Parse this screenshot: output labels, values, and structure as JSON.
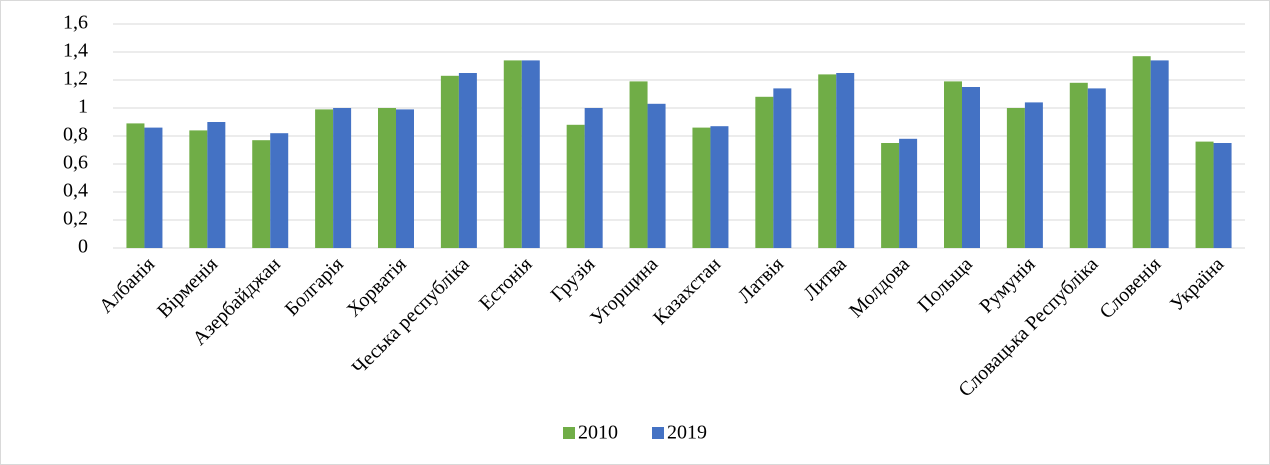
{
  "chart_data": {
    "type": "bar",
    "categories": [
      "Албанія",
      "Вірменія",
      "Азербайджан",
      "Болгарія",
      "Хорватія",
      "Чеська республіка",
      "Естонія",
      "Грузія",
      "Угорщина",
      "Казахстан",
      "Латвія",
      "Литва",
      "Молдова",
      "Польща",
      "Румунія",
      "Словацька Республіка",
      "Словенія",
      "Україна"
    ],
    "series": [
      {
        "name": "2010",
        "color": "#70ad47",
        "values": [
          0.89,
          0.84,
          0.77,
          0.99,
          1.0,
          1.23,
          1.34,
          0.88,
          1.19,
          0.86,
          1.08,
          1.24,
          0.75,
          1.19,
          1.0,
          1.18,
          1.37,
          0.76
        ]
      },
      {
        "name": "2019",
        "color": "#4472c4",
        "values": [
          0.86,
          0.9,
          0.82,
          1.0,
          0.99,
          1.25,
          1.34,
          1.0,
          1.03,
          0.87,
          1.14,
          1.25,
          0.78,
          1.15,
          1.04,
          1.14,
          1.34,
          0.75
        ]
      }
    ],
    "ylim": [
      0,
      1.6
    ],
    "yticks": [
      0,
      {
        "value": 0.2,
        "label": "0,2"
      },
      {
        "value": 0.4,
        "label": "0,4"
      },
      {
        "value": 0.6,
        "label": "0,6"
      },
      {
        "value": 0.8,
        "label": "0,8"
      },
      1,
      {
        "value": 1.2,
        "label": "1,2"
      },
      {
        "value": 1.4,
        "label": "1,4"
      },
      {
        "value": 1.6,
        "label": "1,6"
      }
    ],
    "grid": true,
    "legend": "bottom"
  }
}
